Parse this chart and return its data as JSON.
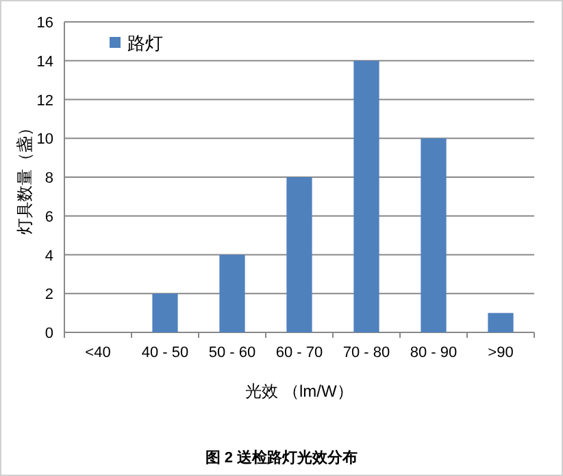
{
  "chart_data": {
    "type": "bar",
    "annotations": [
      "图 2 送检路灯光效分布"
    ],
    "xlabel": "光效 （lm/W）",
    "ylabel": "灯具数量（盏）",
    "categories": [
      "<40",
      "40 - 50",
      "50 - 60",
      "60 - 70",
      "70 - 80",
      "80 - 90",
      ">90"
    ],
    "series": [
      {
        "name": "路灯",
        "color": "#4f81bd",
        "values": [
          0,
          2,
          4,
          8,
          14,
          10,
          1
        ]
      }
    ],
    "ylim": [
      0,
      16
    ],
    "yticks": [
      0,
      2,
      4,
      6,
      8,
      10,
      12,
      14,
      16
    ],
    "grid": "y",
    "legend": "top left"
  }
}
